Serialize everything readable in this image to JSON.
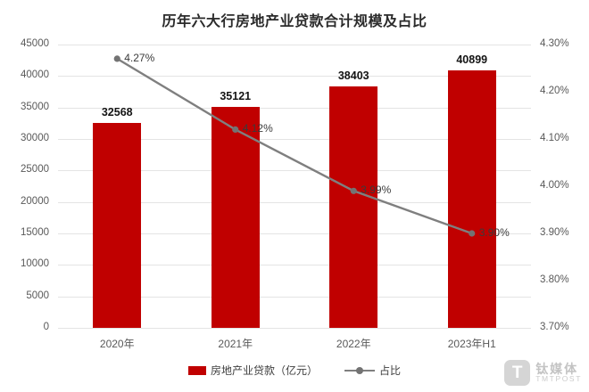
{
  "chart_data": {
    "type": "combo",
    "title": "历年六大行房地产业贷款合计规模及占比",
    "categories": [
      "2020年",
      "2021年",
      "2022年",
      "2023年H1"
    ],
    "series": [
      {
        "name": "房地产业贷款（亿元）",
        "type": "bar",
        "axis": "left",
        "values": [
          32568,
          35121,
          38403,
          40899
        ],
        "labels": [
          "32568",
          "35121",
          "38403",
          "40899"
        ],
        "color": "#c00000"
      },
      {
        "name": "占比",
        "type": "line",
        "axis": "right",
        "values": [
          4.27,
          4.12,
          3.99,
          3.9
        ],
        "labels": [
          "4.27%",
          "4.12%",
          "3.99%",
          "3.90%"
        ],
        "color": "#7f7f7f"
      }
    ],
    "left_axis": {
      "min": 0,
      "max": 45000,
      "step": 5000,
      "ticks": [
        "45000",
        "40000",
        "35000",
        "30000",
        "25000",
        "20000",
        "15000",
        "10000",
        "5000",
        "0"
      ]
    },
    "right_axis": {
      "min": 3.7,
      "max": 4.3,
      "step": 0.1,
      "ticks": [
        "4.30%",
        "4.20%",
        "4.10%",
        "4.00%",
        "3.90%",
        "3.80%",
        "3.70%"
      ]
    },
    "grid": true,
    "legend_position": "bottom",
    "xlabel": "",
    "ylabel": ""
  },
  "legend": {
    "bar_label": "房地产业贷款（亿元）",
    "line_label": "占比"
  },
  "watermark": {
    "logo_letter": "T",
    "name": "钛媒体",
    "sub": "TMTPOST"
  },
  "colors": {
    "bar": "#c00000",
    "line": "#7f7f7f",
    "grid": "#e4e4e4",
    "axis_text": "#595959",
    "value_label_text": "#141414"
  }
}
